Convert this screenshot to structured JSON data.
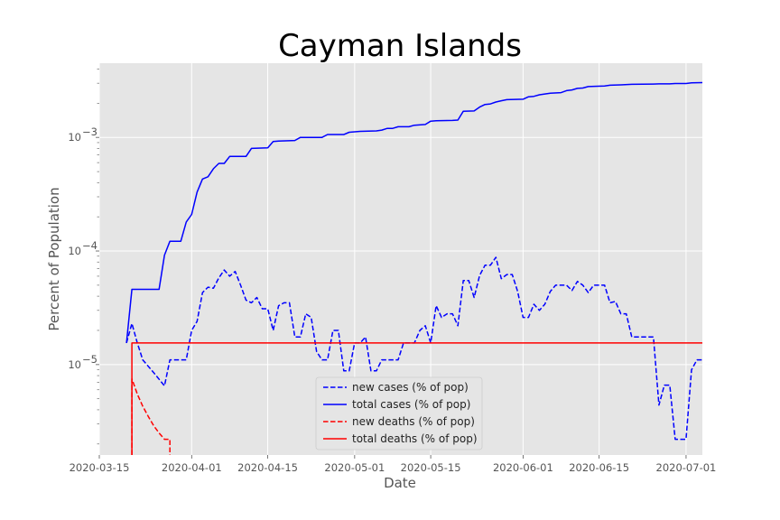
{
  "chart_data": {
    "type": "line",
    "title": "Cayman Islands",
    "xlabel": "Date",
    "ylabel": "Percent of Population",
    "y_scale": "log",
    "xlim": [
      "2020-03-15",
      "2020-07-04"
    ],
    "ylim": [
      1.6e-06,
      0.0045
    ],
    "grid": true,
    "legend_position": "bottom-center",
    "x_ticks": [
      "2020-03-15",
      "2020-04-01",
      "2020-04-15",
      "2020-05-01",
      "2020-05-15",
      "2020-06-01",
      "2020-06-15",
      "2020-07-01"
    ],
    "y_ticks": [
      {
        "value": 1e-05,
        "base": "10",
        "exp": "−5"
      },
      {
        "value": 0.0001,
        "base": "10",
        "exp": "−4"
      },
      {
        "value": 0.001,
        "base": "10",
        "exp": "−3"
      }
    ],
    "series": [
      {
        "name": "new cases (% of pop)",
        "color": "#0000ff",
        "style": "dashed",
        "points": [
          [
            "2020-03-20",
            1.55e-05
          ],
          [
            "2020-03-21",
            2.3e-05
          ],
          [
            "2020-03-22",
            1.55e-05
          ],
          [
            "2020-03-23",
            1.1e-05
          ],
          [
            "2020-03-25",
            8.5e-06
          ],
          [
            "2020-03-27",
            6.5e-06
          ],
          [
            "2020-03-28",
            1.1e-05
          ],
          [
            "2020-03-31",
            1.1e-05
          ],
          [
            "2020-04-01",
            2e-05
          ],
          [
            "2020-04-02",
            2.4e-05
          ],
          [
            "2020-04-03",
            4.3e-05
          ],
          [
            "2020-04-04",
            4.8e-05
          ],
          [
            "2020-04-05",
            4.7e-05
          ],
          [
            "2020-04-06",
            5.8e-05
          ],
          [
            "2020-04-07",
            6.8e-05
          ],
          [
            "2020-04-08",
            6e-05
          ],
          [
            "2020-04-09",
            6.6e-05
          ],
          [
            "2020-04-10",
            5e-05
          ],
          [
            "2020-04-11",
            3.7e-05
          ],
          [
            "2020-04-12",
            3.5e-05
          ],
          [
            "2020-04-13",
            3.9e-05
          ],
          [
            "2020-04-14",
            3.1e-05
          ],
          [
            "2020-04-15",
            3.1e-05
          ],
          [
            "2020-04-16",
            2e-05
          ],
          [
            "2020-04-17",
            3.3e-05
          ],
          [
            "2020-04-18",
            3.5e-05
          ],
          [
            "2020-04-19",
            3.5e-05
          ],
          [
            "2020-04-20",
            1.75e-05
          ],
          [
            "2020-04-21",
            1.75e-05
          ],
          [
            "2020-04-22",
            2.8e-05
          ],
          [
            "2020-04-23",
            2.6e-05
          ],
          [
            "2020-04-24",
            1.3e-05
          ],
          [
            "2020-04-25",
            1.1e-05
          ],
          [
            "2020-04-26",
            1.1e-05
          ],
          [
            "2020-04-27",
            2e-05
          ],
          [
            "2020-04-28",
            2e-05
          ],
          [
            "2020-04-29",
            8.8e-06
          ],
          [
            "2020-04-30",
            8.8e-06
          ],
          [
            "2020-05-01",
            1.55e-05
          ],
          [
            "2020-05-02",
            1.55e-05
          ],
          [
            "2020-05-03",
            1.75e-05
          ],
          [
            "2020-05-04",
            8.8e-06
          ],
          [
            "2020-05-05",
            8.8e-06
          ],
          [
            "2020-05-06",
            1.1e-05
          ],
          [
            "2020-05-09",
            1.1e-05
          ],
          [
            "2020-05-10",
            1.55e-05
          ],
          [
            "2020-05-12",
            1.55e-05
          ],
          [
            "2020-05-13",
            2e-05
          ],
          [
            "2020-05-14",
            2.2e-05
          ],
          [
            "2020-05-15",
            1.55e-05
          ],
          [
            "2020-05-16",
            3.3e-05
          ],
          [
            "2020-05-17",
            2.6e-05
          ],
          [
            "2020-05-18",
            2.8e-05
          ],
          [
            "2020-05-19",
            2.8e-05
          ],
          [
            "2020-05-20",
            2.2e-05
          ],
          [
            "2020-05-21",
            5.5e-05
          ],
          [
            "2020-05-22",
            5.5e-05
          ],
          [
            "2020-05-23",
            3.9e-05
          ],
          [
            "2020-05-24",
            6.1e-05
          ],
          [
            "2020-05-25",
            7.5e-05
          ],
          [
            "2020-05-26",
            7.5e-05
          ],
          [
            "2020-05-27",
            8.8e-05
          ],
          [
            "2020-05-28",
            5.7e-05
          ],
          [
            "2020-05-29",
            6.2e-05
          ],
          [
            "2020-05-30",
            6.2e-05
          ],
          [
            "2020-05-31",
            4.4e-05
          ],
          [
            "2020-06-01",
            2.6e-05
          ],
          [
            "2020-06-02",
            2.6e-05
          ],
          [
            "2020-06-03",
            3.4e-05
          ],
          [
            "2020-06-04",
            3e-05
          ],
          [
            "2020-06-05",
            3.4e-05
          ],
          [
            "2020-06-06",
            4.4e-05
          ],
          [
            "2020-06-07",
            5e-05
          ],
          [
            "2020-06-09",
            5e-05
          ],
          [
            "2020-06-10",
            4.5e-05
          ],
          [
            "2020-06-11",
            5.4e-05
          ],
          [
            "2020-06-12",
            5e-05
          ],
          [
            "2020-06-13",
            4.3e-05
          ],
          [
            "2020-06-14",
            5e-05
          ],
          [
            "2020-06-16",
            5e-05
          ],
          [
            "2020-06-17",
            3.5e-05
          ],
          [
            "2020-06-18",
            3.6e-05
          ],
          [
            "2020-06-19",
            2.8e-05
          ],
          [
            "2020-06-20",
            2.8e-05
          ],
          [
            "2020-06-21",
            1.75e-05
          ],
          [
            "2020-06-22",
            1.75e-05
          ],
          [
            "2020-06-25",
            1.75e-05
          ],
          [
            "2020-06-26",
            4.4e-06
          ],
          [
            "2020-06-27",
            6.6e-06
          ],
          [
            "2020-06-28",
            6.6e-06
          ],
          [
            "2020-06-29",
            2.2e-06
          ],
          [
            "2020-07-01",
            2.2e-06
          ],
          [
            "2020-07-02",
            9e-06
          ],
          [
            "2020-07-03",
            1.1e-05
          ],
          [
            "2020-07-05",
            1.1e-05
          ]
        ]
      },
      {
        "name": "total cases (% of pop)",
        "color": "#0000ff",
        "style": "solid",
        "points": [
          [
            "2020-03-20",
            1.55e-05
          ],
          [
            "2020-03-21",
            4.6e-05
          ],
          [
            "2020-03-26",
            4.6e-05
          ],
          [
            "2020-03-27",
            9.2e-05
          ],
          [
            "2020-03-28",
            0.000122
          ],
          [
            "2020-03-30",
            0.000122
          ],
          [
            "2020-03-31",
            0.00018
          ],
          [
            "2020-04-01",
            0.00021
          ],
          [
            "2020-04-02",
            0.00033
          ],
          [
            "2020-04-03",
            0.00043
          ],
          [
            "2020-04-04",
            0.00045
          ],
          [
            "2020-04-05",
            0.00053
          ],
          [
            "2020-04-06",
            0.00059
          ],
          [
            "2020-04-07",
            0.00059
          ],
          [
            "2020-04-08",
            0.00068
          ],
          [
            "2020-04-11",
            0.00068
          ],
          [
            "2020-04-12",
            0.0008
          ],
          [
            "2020-04-15",
            0.00081
          ],
          [
            "2020-04-16",
            0.00092
          ],
          [
            "2020-04-17",
            0.00093
          ],
          [
            "2020-04-20",
            0.00094
          ],
          [
            "2020-04-21",
            0.001
          ],
          [
            "2020-04-25",
            0.001
          ],
          [
            "2020-04-26",
            0.00106
          ],
          [
            "2020-04-29",
            0.00106
          ],
          [
            "2020-04-30",
            0.00111
          ],
          [
            "2020-05-02",
            0.00113
          ],
          [
            "2020-05-05",
            0.00114
          ],
          [
            "2020-05-06",
            0.00116
          ],
          [
            "2020-05-07",
            0.0012
          ],
          [
            "2020-05-08",
            0.0012
          ],
          [
            "2020-05-09",
            0.00124
          ],
          [
            "2020-05-11",
            0.00124
          ],
          [
            "2020-05-12",
            0.00128
          ],
          [
            "2020-05-14",
            0.0013
          ],
          [
            "2020-05-15",
            0.00139
          ],
          [
            "2020-05-16",
            0.0014
          ],
          [
            "2020-05-19",
            0.00141
          ],
          [
            "2020-05-20",
            0.00142
          ],
          [
            "2020-05-21",
            0.0017
          ],
          [
            "2020-05-23",
            0.00171
          ],
          [
            "2020-05-24",
            0.00185
          ],
          [
            "2020-05-25",
            0.00195
          ],
          [
            "2020-05-26",
            0.00197
          ],
          [
            "2020-05-27",
            0.00205
          ],
          [
            "2020-05-28",
            0.0021
          ],
          [
            "2020-05-29",
            0.00215
          ],
          [
            "2020-06-01",
            0.00217
          ],
          [
            "2020-06-02",
            0.00228
          ],
          [
            "2020-06-03",
            0.0023
          ],
          [
            "2020-06-04",
            0.00237
          ],
          [
            "2020-06-06",
            0.00245
          ],
          [
            "2020-06-08",
            0.00248
          ],
          [
            "2020-06-09",
            0.00258
          ],
          [
            "2020-06-10",
            0.00262
          ],
          [
            "2020-06-11",
            0.0027
          ],
          [
            "2020-06-12",
            0.00272
          ],
          [
            "2020-06-13",
            0.0028
          ],
          [
            "2020-06-16",
            0.00283
          ],
          [
            "2020-06-17",
            0.00288
          ],
          [
            "2020-06-19",
            0.0029
          ],
          [
            "2020-06-21",
            0.00293
          ],
          [
            "2020-06-25",
            0.00295
          ],
          [
            "2020-06-26",
            0.00296
          ],
          [
            "2020-06-28",
            0.00296
          ],
          [
            "2020-06-29",
            0.00298
          ],
          [
            "2020-07-01",
            0.00298
          ],
          [
            "2020-07-02",
            0.00302
          ],
          [
            "2020-07-05",
            0.00305
          ]
        ]
      },
      {
        "name": "new deaths (% of pop)",
        "color": "#ff0000",
        "style": "dashed",
        "points": [
          [
            "2020-03-21",
            1.6e-06
          ],
          [
            "2020-03-21",
            7.5e-06
          ],
          [
            "2020-03-22",
            5.5e-06
          ],
          [
            "2020-03-23",
            4.3e-06
          ],
          [
            "2020-03-24",
            3.5e-06
          ],
          [
            "2020-03-25",
            2.9e-06
          ],
          [
            "2020-03-26",
            2.5e-06
          ],
          [
            "2020-03-27",
            2.2e-06
          ],
          [
            "2020-03-28",
            2.2e-06
          ],
          [
            "2020-03-28",
            1.6e-06
          ]
        ]
      },
      {
        "name": "total deaths (% of pop)",
        "color": "#ff0000",
        "style": "solid",
        "points": [
          [
            "2020-03-21",
            1.6e-06
          ],
          [
            "2020-03-21",
            1.55e-05
          ],
          [
            "2020-07-05",
            1.55e-05
          ]
        ]
      }
    ]
  }
}
